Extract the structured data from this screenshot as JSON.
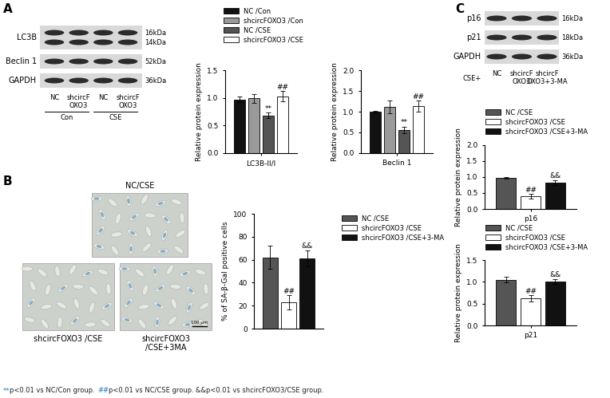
{
  "chart_data": [
    {
      "type": "bar",
      "categories": [
        "LC3B-II/I"
      ],
      "y_label": "Relative protein expression",
      "ylim": [
        0,
        1.5
      ],
      "yticks": [
        {
          "value": 0,
          "label": "0.0"
        },
        {
          "value": 0.5,
          "label": "0.5"
        },
        {
          "value": 1,
          "label": "1.0"
        },
        {
          "value": 1.5,
          "label": "1.5"
        }
      ],
      "legend": "upper left",
      "series": [
        {
          "name": "NC /Con",
          "color": "#111111",
          "values": [
            0.97
          ],
          "errors": [
            0.05
          ]
        },
        {
          "name": "shcircFOXO3 /Con",
          "color": "#9a9a9a",
          "values": [
            0.99
          ],
          "errors": [
            0.08
          ]
        },
        {
          "name": "NC /CSE",
          "color": "#555555",
          "values": [
            0.68
          ],
          "errors": [
            0.05
          ]
        },
        {
          "name": "shcircFOXO3 /CSE",
          "color": "#ffffff",
          "values": [
            1.03
          ],
          "errors": [
            0.09
          ]
        }
      ],
      "annotations": [
        {
          "series": "NC /CSE",
          "text": "**"
        },
        {
          "series": "shcircFOXO3 /CSE",
          "text": "##"
        }
      ]
    },
    {
      "type": "bar",
      "categories": [
        "Beclin 1"
      ],
      "y_label": "Relative protein expression",
      "ylim": [
        0,
        2.0
      ],
      "yticks": [
        {
          "value": 0,
          "label": "0.0"
        },
        {
          "value": 0.5,
          "label": "0.5"
        },
        {
          "value": 1,
          "label": "1.0"
        },
        {
          "value": 1.5,
          "label": "1.5"
        },
        {
          "value": 2,
          "label": "2.0"
        }
      ],
      "series": [
        {
          "name": "NC /Con",
          "color": "#111111",
          "values": [
            1.0
          ],
          "errors": [
            0.02
          ]
        },
        {
          "name": "shcircFOXO3 /Con",
          "color": "#9a9a9a",
          "values": [
            1.12
          ],
          "errors": [
            0.15
          ]
        },
        {
          "name": "NC /CSE",
          "color": "#555555",
          "values": [
            0.56
          ],
          "errors": [
            0.08
          ]
        },
        {
          "name": "shcircFOXO3 /CSE",
          "color": "#ffffff",
          "values": [
            1.13
          ],
          "errors": [
            0.13
          ]
        }
      ],
      "annotations": [
        {
          "series": "NC /CSE",
          "text": "**"
        },
        {
          "series": "shcircFOXO3 /CSE",
          "text": "##"
        }
      ]
    },
    {
      "type": "bar",
      "categories": [
        null
      ],
      "y_label": "% of SA-β-Gal positive cells",
      "ylim": [
        0,
        100
      ],
      "yticks": [
        0,
        20,
        40,
        60,
        80,
        100
      ],
      "legend": "upper left",
      "series": [
        {
          "name": "NC /CSE",
          "color": "#555555",
          "values": [
            62
          ],
          "errors": [
            10
          ]
        },
        {
          "name": "shcircFOXO3 /CSE",
          "color": "#ffffff",
          "values": [
            23
          ],
          "errors": [
            6
          ]
        },
        {
          "name": "shcircFOXO3 /CSE+3-MA",
          "color": "#111111",
          "values": [
            61
          ],
          "errors": [
            7
          ]
        }
      ],
      "annotations": [
        {
          "series": "shcircFOXO3 /CSE",
          "text": "##"
        },
        {
          "series": "shcircFOXO3 /CSE+3-MA",
          "text": "&&"
        }
      ]
    },
    {
      "type": "bar",
      "categories": [
        "p16"
      ],
      "y_label": "Relative protein expression",
      "ylim": [
        0,
        2.0
      ],
      "yticks": [
        {
          "value": 0,
          "label": "0.0"
        },
        {
          "value": 0.5,
          "label": "0.5"
        },
        {
          "value": 1,
          "label": "1.0"
        },
        {
          "value": 1.5,
          "label": "1.5"
        },
        {
          "value": 2,
          "label": "2.0"
        }
      ],
      "legend": "upper left",
      "series": [
        {
          "name": "NC /CSE",
          "color": "#555555",
          "values": [
            0.97
          ],
          "errors": [
            0.03
          ]
        },
        {
          "name": "shcircFOXO3 /CSE",
          "color": "#ffffff",
          "values": [
            0.4
          ],
          "errors": [
            0.07
          ]
        },
        {
          "name": "shcircFOXO3 /CSE+3-MA",
          "color": "#111111",
          "values": [
            0.83
          ],
          "errors": [
            0.08
          ]
        }
      ],
      "annotations": [
        {
          "series": "shcircFOXO3 /CSE",
          "text": "##"
        },
        {
          "series": "shcircFOXO3 /CSE+3-MA",
          "text": "&&"
        }
      ]
    },
    {
      "type": "bar",
      "categories": [
        "p21"
      ],
      "y_label": "Relative protein expression",
      "ylim": [
        0,
        1.5
      ],
      "yticks": [
        {
          "value": 0,
          "label": "0.0"
        },
        {
          "value": 0.5,
          "label": "0.5"
        },
        {
          "value": 1,
          "label": "1.0"
        },
        {
          "value": 1.5,
          "label": "1.5"
        }
      ],
      "legend": "upper left",
      "series": [
        {
          "name": "NC /CSE",
          "color": "#555555",
          "values": [
            1.05
          ],
          "errors": [
            0.06
          ]
        },
        {
          "name": "shcircFOXO3 /CSE",
          "color": "#ffffff",
          "values": [
            0.62
          ],
          "errors": [
            0.07
          ]
        },
        {
          "name": "shcircFOXO3 /CSE+3-MA",
          "color": "#111111",
          "values": [
            1.01
          ],
          "errors": [
            0.05
          ]
        }
      ],
      "annotations": [
        {
          "series": "shcircFOXO3 /CSE",
          "text": "##"
        },
        {
          "series": "shcircFOXO3 /CSE+3-MA",
          "text": "&&"
        }
      ]
    }
  ],
  "blots": [
    {
      "panel": "A",
      "rows": [
        {
          "label": "LC3B",
          "kda": [
            "16kDa",
            "14kDa"
          ]
        },
        {
          "label": "Beclin 1",
          "kda": [
            "52kDa"
          ]
        },
        {
          "label": "GAPDH",
          "kda": [
            "36kDa"
          ]
        }
      ],
      "lanes": [
        "NC",
        "shcircF\nOXO3",
        "NC",
        "shcircF\nOXO3"
      ],
      "groups": [
        "Con",
        "CSE"
      ]
    },
    {
      "panel": "C",
      "condition": "CSE+",
      "rows": [
        {
          "label": "p16",
          "kda": [
            "16kDa"
          ]
        },
        {
          "label": "p21",
          "kda": [
            "18kDa"
          ]
        },
        {
          "label": "GAPDH",
          "kda": [
            "36kDa"
          ]
        }
      ],
      "lanes": [
        "NC",
        "shcircF\nOXO3",
        "shcircF\nOXO3+3-MA"
      ]
    }
  ],
  "micrographs": {
    "panel": "B",
    "images": [
      {
        "title": "NC/CSE"
      },
      {
        "title": "shcircFOXO3 /CSE"
      },
      {
        "title": "shcircFOXO3\n/CSE+3MA"
      }
    ],
    "scale_bar": "100 μm"
  },
  "footnote": [
    {
      "text": "**",
      "color": "#2a7ab9"
    },
    {
      "text": "p<0.01 vs NC/Con group. ",
      "color": "#222222"
    },
    {
      "text": "##",
      "color": "#2a7ab9"
    },
    {
      "text": "p<0.01 vs NC/CSE group. ",
      "color": "#222222"
    },
    {
      "text": "&&p<0.01 vs shcircFOXO3/CSE group.",
      "color": "#222222"
    }
  ]
}
